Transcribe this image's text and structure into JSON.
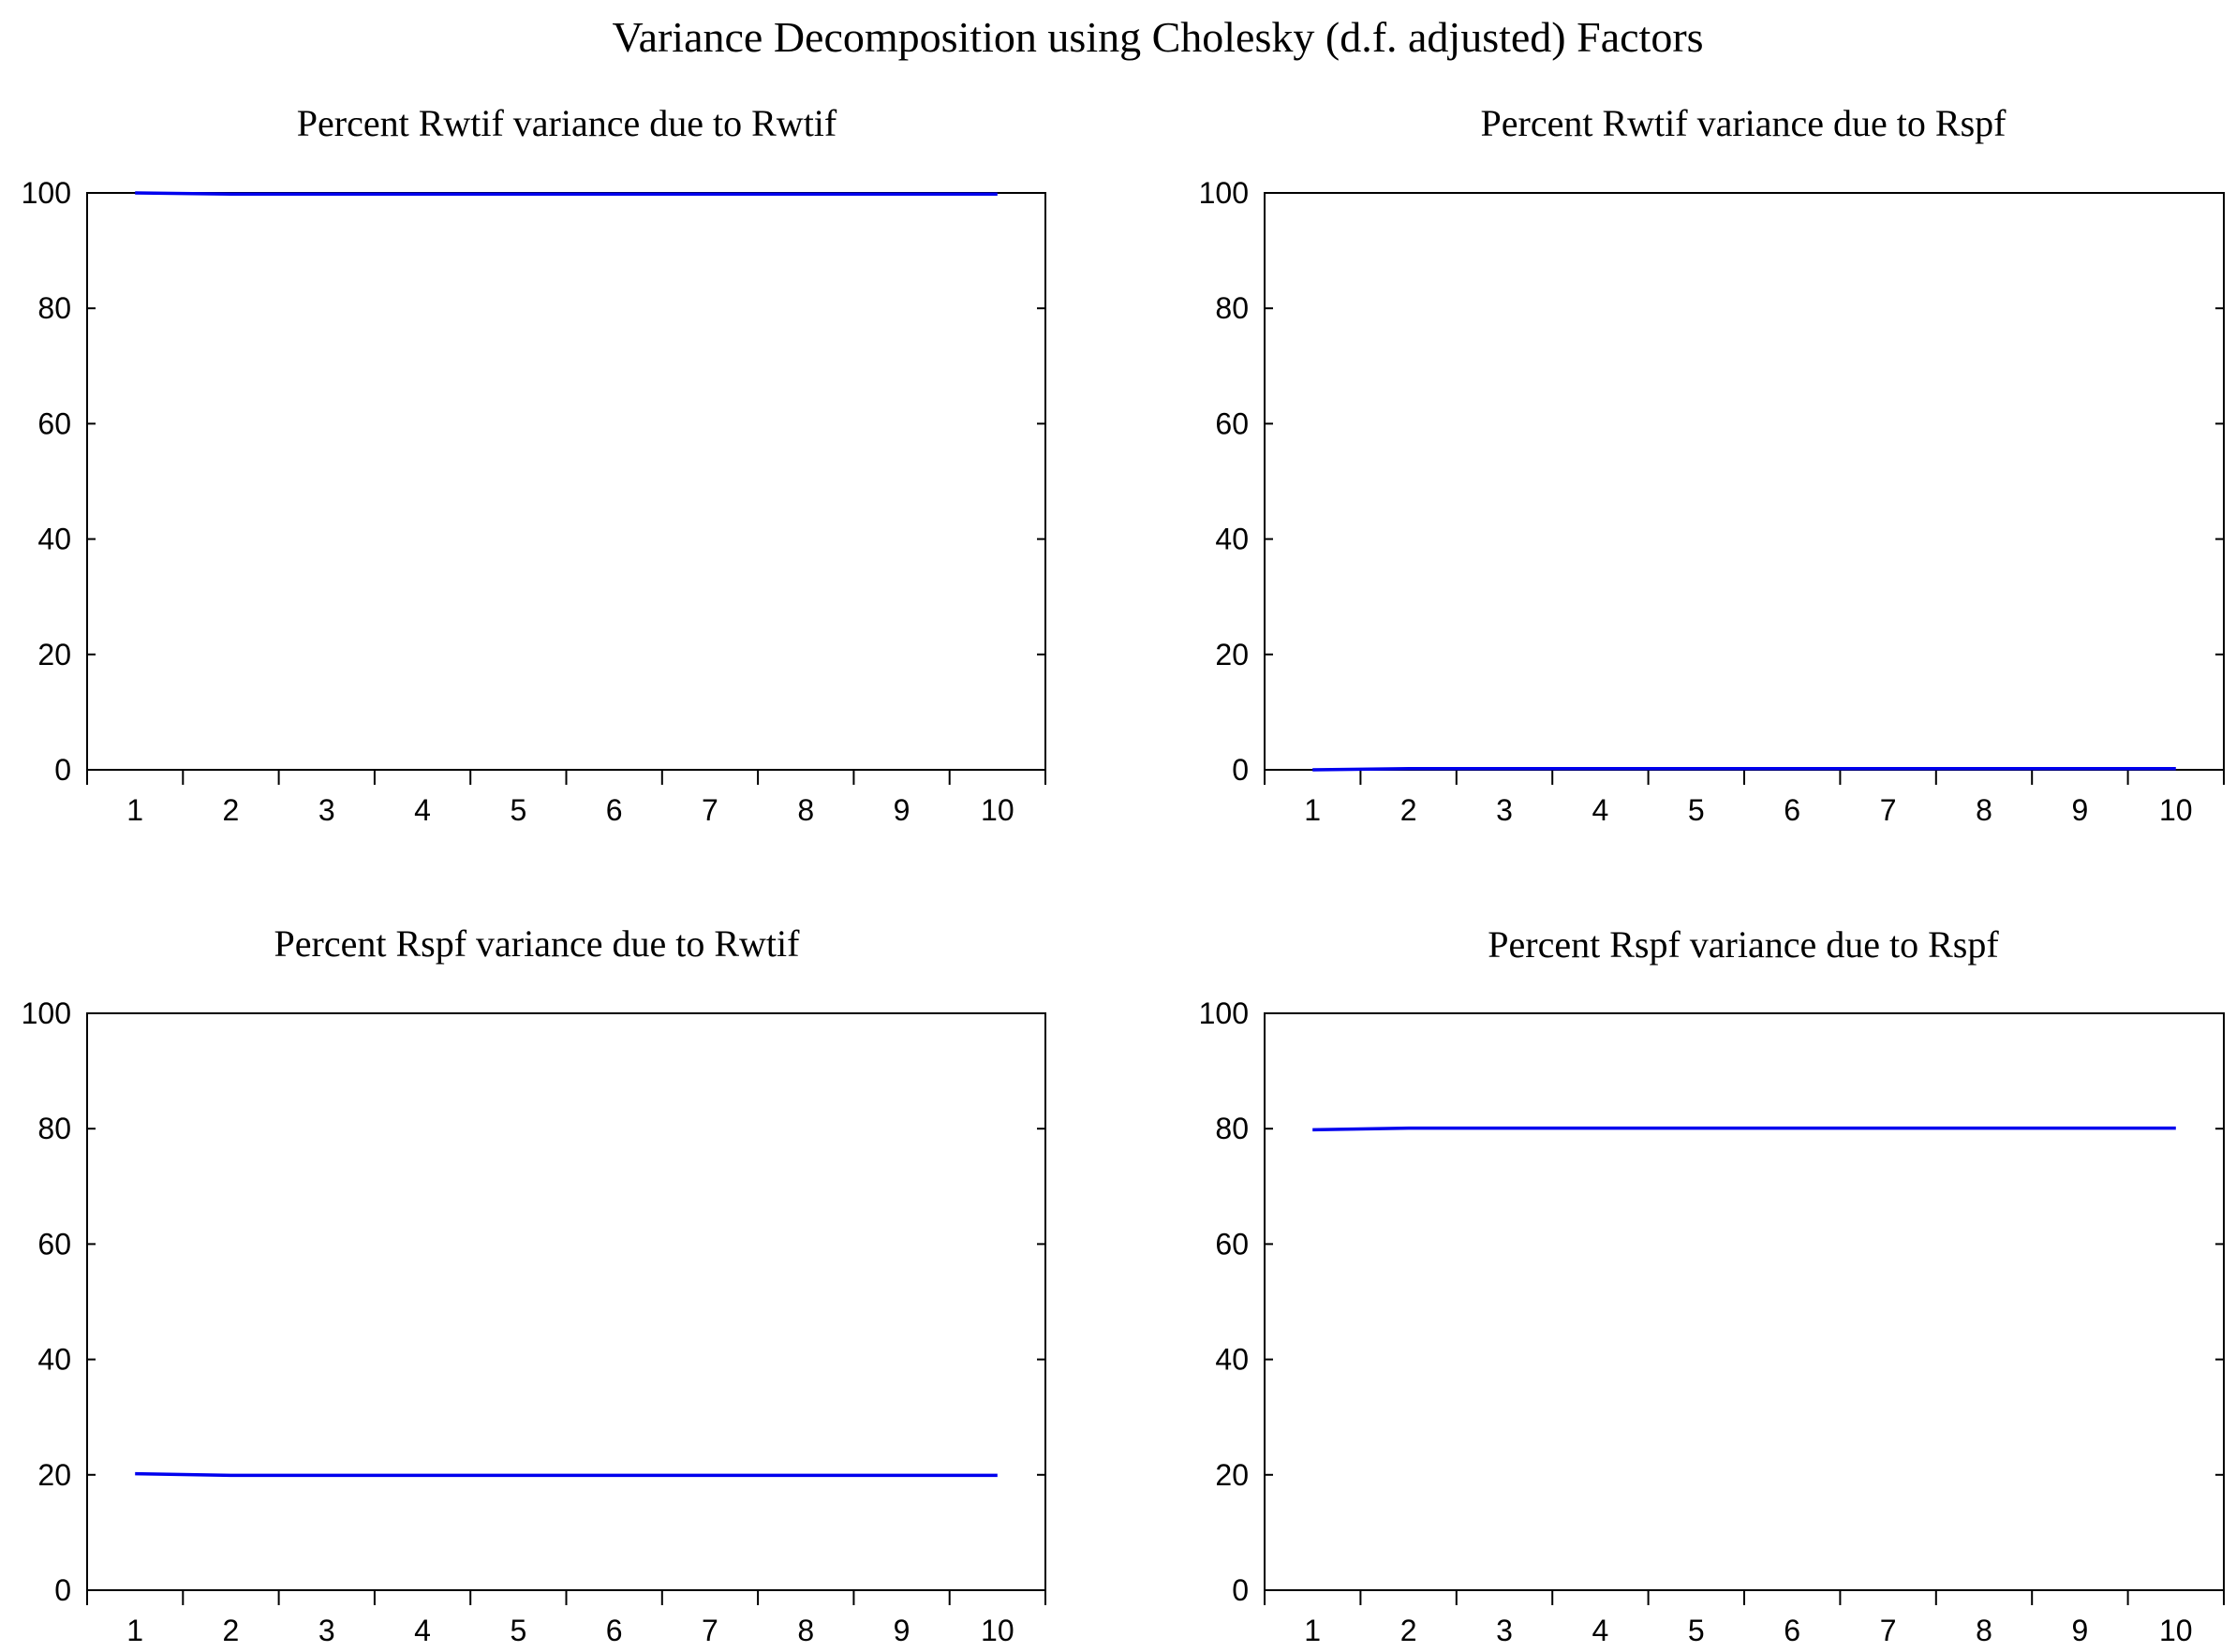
{
  "title": "Variance Decomposition using Cholesky (d.f. adjusted) Factors",
  "colors": {
    "series": "#0000EE",
    "axes": "#000000",
    "background": "#FFFFFF"
  },
  "chart_data": [
    {
      "type": "line",
      "title": "Percent Rwtif variance due to Rwtif",
      "x": [
        1,
        2,
        3,
        4,
        5,
        6,
        7,
        8,
        9,
        10
      ],
      "x_ticks": [
        "1",
        "2",
        "3",
        "4",
        "5",
        "6",
        "7",
        "8",
        "9",
        "10"
      ],
      "y_ticks": [
        "0",
        "20",
        "40",
        "60",
        "80",
        "100"
      ],
      "ylim": [
        0,
        100
      ],
      "series": [
        {
          "values": [
            100,
            99.8,
            99.8,
            99.8,
            99.8,
            99.8,
            99.8,
            99.8,
            99.8,
            99.8
          ]
        }
      ],
      "grid": false
    },
    {
      "type": "line",
      "title": "Percent Rwtif variance due to Rspf",
      "x": [
        1,
        2,
        3,
        4,
        5,
        6,
        7,
        8,
        9,
        10
      ],
      "x_ticks": [
        "1",
        "2",
        "3",
        "4",
        "5",
        "6",
        "7",
        "8",
        "9",
        "10"
      ],
      "y_ticks": [
        "0",
        "20",
        "40",
        "60",
        "80",
        "100"
      ],
      "ylim": [
        0,
        100
      ],
      "series": [
        {
          "values": [
            0,
            0.2,
            0.2,
            0.2,
            0.2,
            0.2,
            0.2,
            0.2,
            0.2,
            0.2
          ]
        }
      ],
      "grid": false
    },
    {
      "type": "line",
      "title": "Percent Rspf variance due to Rwtif",
      "x": [
        1,
        2,
        3,
        4,
        5,
        6,
        7,
        8,
        9,
        10
      ],
      "x_ticks": [
        "1",
        "2",
        "3",
        "4",
        "5",
        "6",
        "7",
        "8",
        "9",
        "10"
      ],
      "y_ticks": [
        "0",
        "20",
        "40",
        "60",
        "80",
        "100"
      ],
      "ylim": [
        0,
        100
      ],
      "series": [
        {
          "values": [
            20.2,
            19.9,
            19.9,
            19.9,
            19.9,
            19.9,
            19.9,
            19.9,
            19.9,
            19.9
          ]
        }
      ],
      "grid": false
    },
    {
      "type": "line",
      "title": "Percent Rspf variance due to Rspf",
      "x": [
        1,
        2,
        3,
        4,
        5,
        6,
        7,
        8,
        9,
        10
      ],
      "x_ticks": [
        "1",
        "2",
        "3",
        "4",
        "5",
        "6",
        "7",
        "8",
        "9",
        "10"
      ],
      "y_ticks": [
        "0",
        "20",
        "40",
        "60",
        "80",
        "100"
      ],
      "ylim": [
        0,
        100
      ],
      "series": [
        {
          "values": [
            79.8,
            80.1,
            80.1,
            80.1,
            80.1,
            80.1,
            80.1,
            80.1,
            80.1,
            80.1
          ]
        }
      ],
      "grid": false
    }
  ]
}
